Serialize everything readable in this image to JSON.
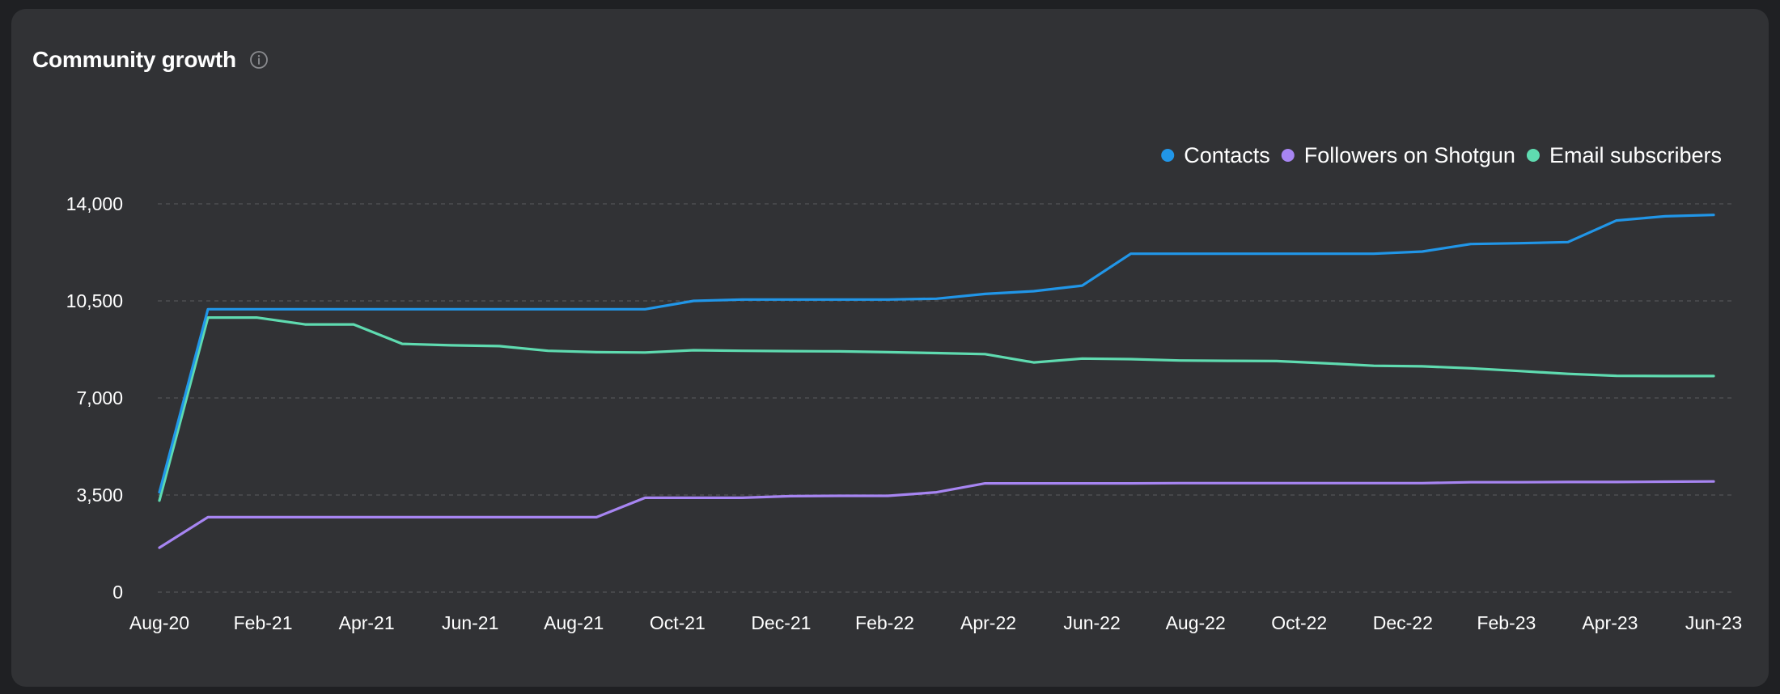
{
  "card": {
    "title": "Community growth",
    "info_icon": "info-circle-icon"
  },
  "colors": {
    "background": "#313235",
    "grid": "#4d4e52",
    "contacts": "#2196e8",
    "followers": "#a785f2",
    "email": "#5fdbb0"
  },
  "chart_data": {
    "type": "line",
    "title": "Community growth",
    "xlabel": "",
    "ylabel": "",
    "ylim": [
      0,
      14000
    ],
    "yticks": [
      0,
      3500,
      7000,
      10500,
      14000
    ],
    "ytick_labels": [
      "0",
      "3,500",
      "7,000",
      "10,500",
      "14,000"
    ],
    "xtick_labels": [
      "Aug-20",
      "Feb-21",
      "Apr-21",
      "Jun-21",
      "Aug-21",
      "Oct-21",
      "Dec-21",
      "Feb-22",
      "Apr-22",
      "Jun-22",
      "Aug-22",
      "Oct-22",
      "Dec-22",
      "Feb-23",
      "Apr-23",
      "Jun-23"
    ],
    "legend_position": "top-right",
    "grid": true,
    "series": [
      {
        "name": "Contacts",
        "color": "#2196e8",
        "values": [
          3600,
          10200,
          10200,
          10200,
          10200,
          10200,
          10200,
          10200,
          10200,
          10200,
          10200,
          10500,
          10550,
          10550,
          10550,
          10550,
          10580,
          10750,
          10850,
          11050,
          12200,
          12200,
          12200,
          12200,
          12200,
          12200,
          12280,
          12550,
          12580,
          12620,
          13400,
          13550,
          13600
        ]
      },
      {
        "name": "Followers on Shotgun",
        "color": "#a785f2",
        "values": [
          1600,
          2700,
          2700,
          2700,
          2700,
          2700,
          2700,
          2700,
          2700,
          2700,
          3400,
          3400,
          3400,
          3460,
          3470,
          3470,
          3600,
          3920,
          3920,
          3920,
          3920,
          3930,
          3930,
          3930,
          3930,
          3930,
          3930,
          3960,
          3960,
          3970,
          3970,
          3980,
          3990
        ]
      },
      {
        "name": "Email subscribers",
        "color": "#5fdbb0",
        "values": [
          3300,
          9900,
          9900,
          9650,
          9650,
          8950,
          8900,
          8870,
          8700,
          8650,
          8640,
          8720,
          8700,
          8690,
          8680,
          8650,
          8620,
          8580,
          8280,
          8420,
          8400,
          8350,
          8340,
          8330,
          8250,
          8160,
          8140,
          8070,
          7970,
          7870,
          7800,
          7790,
          7790
        ]
      }
    ]
  }
}
